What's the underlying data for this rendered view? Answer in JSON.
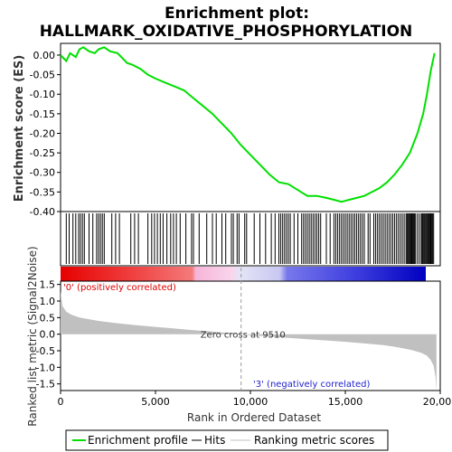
{
  "chart_data": {
    "type": "line",
    "title_line1": "Enrichment plot:",
    "title_line2": "HALLMARK_OXIDATIVE_PHOSPHORYLATION",
    "es_panel": {
      "ylabel": "Enrichment score (ES)",
      "ylim": [
        -0.4,
        0.03
      ],
      "yticks": [
        "0.00",
        "-0.05",
        "-0.10",
        "-0.15",
        "-0.20",
        "-0.25",
        "-0.30",
        "-0.35",
        "-0.40"
      ],
      "ytick_values": [
        0.0,
        -0.05,
        -0.1,
        -0.15,
        -0.2,
        -0.25,
        -0.3,
        -0.35,
        -0.4
      ],
      "line_color": "#00e000",
      "series": [
        {
          "name": "Enrichment profile",
          "x": [
            0,
            300,
            500,
            800,
            1000,
            1200,
            1500,
            1800,
            2000,
            2300,
            2600,
            3000,
            3500,
            3800,
            4200,
            4600,
            5000,
            5500,
            6000,
            6500,
            7000,
            7500,
            8000,
            8500,
            9000,
            9500,
            10000,
            10500,
            11000,
            11500,
            12000,
            12500,
            13000,
            13500,
            14000,
            14400,
            14800,
            15200,
            15600,
            16000,
            16400,
            16800,
            17200,
            17600,
            18000,
            18400,
            18800,
            19100,
            19300,
            19500,
            19700
          ],
          "y": [
            0.0,
            -0.015,
            0.005,
            -0.005,
            0.015,
            0.02,
            0.01,
            0.005,
            0.015,
            0.02,
            0.01,
            0.005,
            -0.02,
            -0.025,
            -0.035,
            -0.05,
            -0.06,
            -0.07,
            -0.08,
            -0.09,
            -0.11,
            -0.13,
            -0.15,
            -0.175,
            -0.2,
            -0.23,
            -0.255,
            -0.28,
            -0.305,
            -0.325,
            -0.33,
            -0.345,
            -0.36,
            -0.36,
            -0.365,
            -0.37,
            -0.375,
            -0.37,
            -0.365,
            -0.36,
            -0.35,
            -0.34,
            -0.325,
            -0.305,
            -0.28,
            -0.25,
            -0.2,
            -0.15,
            -0.1,
            -0.04,
            0.005
          ]
        }
      ]
    },
    "hits_panel": {
      "x": [
        300,
        450,
        650,
        800,
        950,
        1050,
        1150,
        1250,
        1500,
        1700,
        1900,
        2000,
        2100,
        2200,
        2300,
        2700,
        2900,
        3100,
        3700,
        3900,
        4100,
        4600,
        4800,
        4950,
        5100,
        5250,
        5400,
        5600,
        5800,
        5950,
        6100,
        6300,
        6600,
        6900,
        7000,
        7300,
        7700,
        8000,
        8200,
        8500,
        8700,
        9000,
        9100,
        9300,
        9400,
        9700,
        9800,
        10200,
        10500,
        10800,
        11100,
        11300,
        11500,
        11600,
        11700,
        11800,
        11900,
        12000,
        12100,
        12300,
        12500,
        12700,
        12800,
        12900,
        13000,
        13100,
        13200,
        13300,
        13400,
        13500,
        13600,
        13700,
        14000,
        14200,
        14400,
        14500,
        14600,
        14700,
        14800,
        14900,
        15000,
        15100,
        15200,
        15300,
        15400,
        15500,
        15600,
        15700,
        15800,
        15900,
        16000,
        16200,
        16300,
        16500,
        16600,
        16700,
        16800,
        16900,
        17000,
        17100,
        17200,
        17300,
        17400,
        17500,
        17600,
        17700,
        17800,
        17900,
        18000,
        18100,
        18200,
        18250,
        18300,
        18350,
        18400,
        18450,
        18500,
        18550,
        18600,
        18650,
        18700,
        18800,
        18900,
        19000,
        19050,
        19100,
        19150,
        19200,
        19250,
        19300,
        19350,
        19400,
        19450,
        19500,
        19550,
        19600,
        19650
      ]
    },
    "heatbar": {
      "label_pos": "'0' (positively correlated)",
      "label_neg": "'3' (negatively correlated)",
      "pos_color": "#ff0000",
      "neg_color": "#0000ff"
    },
    "rank_panel": {
      "ylabel": "Ranked list metric (Signal2Noise)",
      "xlabel": "Rank in Ordered Dataset",
      "ylim": [
        -1.7,
        1.6
      ],
      "yticks": [
        "1.5",
        "1.0",
        "0.5",
        "0.0",
        "-0.5",
        "-1.0",
        "-1.5"
      ],
      "ytick_values": [
        1.5,
        1.0,
        0.5,
        0.0,
        -0.5,
        -1.0,
        -1.5
      ],
      "xlim": [
        0,
        20000
      ],
      "xticks": [
        "0",
        "5,000",
        "10,000",
        "15,000",
        "20,000"
      ],
      "xtick_values": [
        0,
        5000,
        10000,
        15000,
        20000
      ],
      "zero_cross_label": "Zero cross at 9510",
      "zero_cross": 9510,
      "fill_color": "#c0c0c0",
      "x": [
        0,
        100,
        300,
        600,
        1000,
        2000,
        3000,
        4000,
        5000,
        6000,
        7000,
        8000,
        9000,
        9510,
        10000,
        11000,
        12000,
        13000,
        14000,
        15000,
        16000,
        17000,
        17500,
        18000,
        18500,
        19000,
        19300,
        19500,
        19650,
        19750,
        19800
      ],
      "y": [
        1.3,
        0.85,
        0.68,
        0.58,
        0.5,
        0.4,
        0.33,
        0.27,
        0.22,
        0.17,
        0.12,
        0.08,
        0.03,
        0.0,
        -0.03,
        -0.07,
        -0.11,
        -0.15,
        -0.19,
        -0.23,
        -0.28,
        -0.33,
        -0.37,
        -0.42,
        -0.48,
        -0.56,
        -0.65,
        -0.78,
        -0.95,
        -1.3,
        -1.7
      ]
    },
    "legend": {
      "entries": [
        {
          "label": "Enrichment profile",
          "color": "#00e000"
        },
        {
          "label": "Hits",
          "color": "#000000"
        },
        {
          "label": "Ranking metric scores",
          "color": "#c0c0c0"
        }
      ]
    }
  }
}
